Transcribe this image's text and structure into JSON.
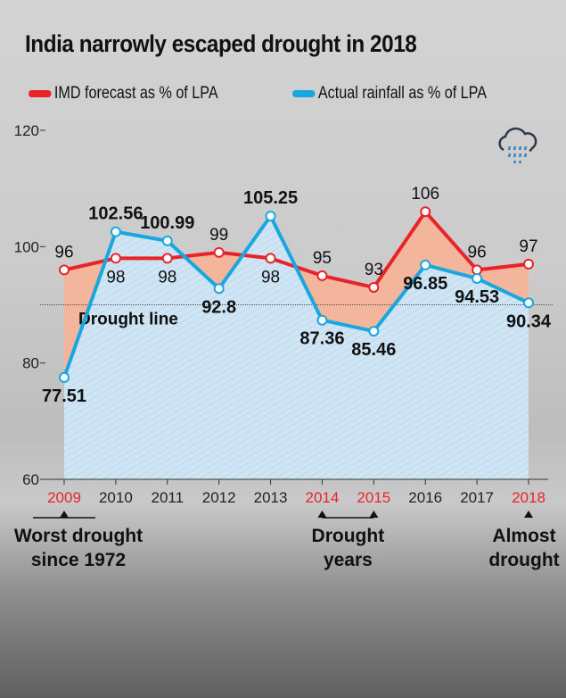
{
  "title": "India narrowly escaped drought in 2018",
  "chart_data": {
    "type": "line",
    "title": "India narrowly escaped drought in 2018",
    "categories": [
      "2009",
      "2010",
      "2011",
      "2012",
      "2013",
      "2014",
      "2015",
      "2016",
      "2017",
      "2018"
    ],
    "highlight_years": [
      "2009",
      "2014",
      "2015",
      "2018"
    ],
    "series": [
      {
        "name": "IMD forecast as % of LPA",
        "color": "#e8232a",
        "values": [
          96,
          98,
          98,
          99,
          98,
          95,
          93,
          106,
          96,
          97
        ],
        "labels": [
          "96",
          "98",
          "98",
          "99",
          "98",
          "95",
          "93",
          "106",
          "96",
          "97"
        ]
      },
      {
        "name": "Actual rainfall as % of LPA",
        "color": "#19a7e0",
        "values": [
          77.51,
          102.56,
          100.99,
          92.8,
          105.25,
          87.36,
          85.46,
          96.85,
          94.53,
          90.34
        ],
        "labels": [
          "77.51",
          "102.56",
          "100.99",
          "92.8",
          "105.25",
          "87.36",
          "85.46",
          "96.85",
          "94.53",
          "90.34"
        ]
      }
    ],
    "ylim": [
      60,
      120
    ],
    "yticks": [
      "60",
      "80",
      "100",
      "120"
    ],
    "drought_line": {
      "value": 90,
      "label": "Drought line"
    },
    "annotations": [
      {
        "years": [
          "2009"
        ],
        "lines": [
          "Worst drought",
          "since 1972"
        ]
      },
      {
        "years": [
          "2014",
          "2015"
        ],
        "lines": [
          "Drought",
          "years"
        ]
      },
      {
        "years": [
          "2018"
        ],
        "lines": [
          "Almost",
          "drought"
        ]
      }
    ],
    "icon": "rain-cloud-icon"
  }
}
